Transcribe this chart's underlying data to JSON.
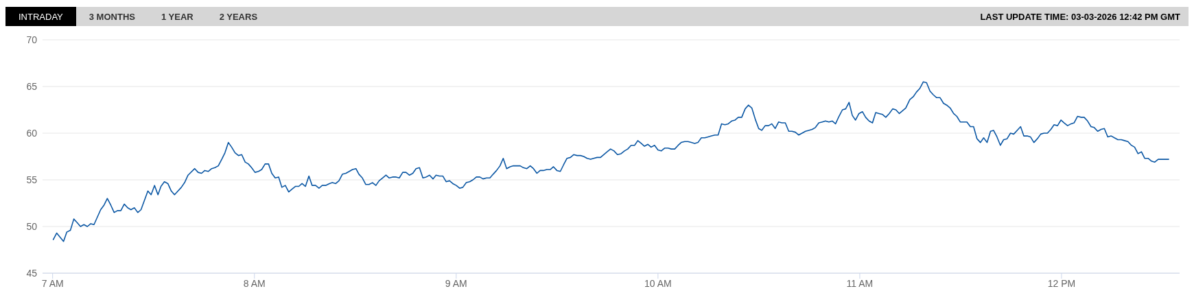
{
  "chart_data": {
    "type": "line",
    "annotations": [
      "INTRADAY",
      "3 MONTHS",
      "1 YEAR",
      "2 YEARS",
      "LAST UPDATE TIME: 03-03-2026 12:42 PM GMT"
    ],
    "x": [
      7.003,
      7.02,
      7.054,
      7.07,
      7.088,
      7.105,
      7.122,
      7.138,
      7.155,
      7.172,
      7.189,
      7.205,
      7.238,
      7.255,
      7.271,
      7.288,
      7.305,
      7.321,
      7.338,
      7.355,
      7.372,
      7.388,
      7.405,
      7.422,
      7.438,
      7.472,
      7.488,
      7.505,
      7.522,
      7.537,
      7.554,
      7.571,
      7.588,
      7.604,
      7.638,
      7.654,
      7.671,
      7.704,
      7.721,
      7.738,
      7.754,
      7.771,
      7.788,
      7.804,
      7.821,
      7.838,
      7.854,
      7.871,
      7.887,
      7.904,
      7.921,
      7.937,
      7.954,
      7.97,
      7.986,
      8.003,
      8.02,
      8.036,
      8.053,
      8.07,
      8.086,
      8.103,
      8.12,
      8.136,
      8.153,
      8.17,
      8.186,
      8.203,
      8.22,
      8.236,
      8.253,
      8.27,
      8.286,
      8.303,
      8.32,
      8.336,
      8.353,
      8.372,
      8.386,
      8.403,
      8.419,
      8.436,
      8.453,
      8.47,
      8.486,
      8.503,
      8.518,
      8.535,
      8.552,
      8.568,
      8.585,
      8.602,
      8.618,
      8.635,
      8.652,
      8.668,
      8.685,
      8.702,
      8.718,
      8.735,
      8.751,
      8.768,
      8.785,
      8.801,
      8.818,
      8.835,
      8.851,
      8.868,
      8.885,
      8.9,
      8.917,
      8.934,
      8.95,
      8.967,
      8.983,
      9.0,
      9.017,
      9.033,
      9.05,
      9.067,
      9.083,
      9.1,
      9.117,
      9.133,
      9.15,
      9.167,
      9.183,
      9.2,
      9.217,
      9.233,
      9.25,
      9.267,
      9.283,
      9.3,
      9.317,
      9.333,
      9.35,
      9.367,
      9.383,
      9.4,
      9.416,
      9.432,
      9.449,
      9.466,
      9.482,
      9.499,
      9.516,
      9.532,
      9.549,
      9.566,
      9.582,
      9.599,
      9.616,
      9.632,
      9.649,
      9.666,
      9.681,
      9.698,
      9.715,
      9.731,
      9.748,
      9.765,
      9.782,
      9.799,
      9.817,
      9.834,
      9.85,
      9.867,
      9.884,
      9.9,
      9.917,
      9.933,
      9.95,
      9.966,
      9.983,
      10.0,
      10.016,
      10.033,
      10.05,
      10.066,
      10.083,
      10.1,
      10.115,
      10.132,
      10.149,
      10.165,
      10.182,
      10.198,
      10.215,
      10.232,
      10.248,
      10.265,
      10.282,
      10.298,
      10.315,
      10.332,
      10.348,
      10.365,
      10.382,
      10.398,
      10.415,
      10.432,
      10.448,
      10.465,
      10.482,
      10.499,
      10.514,
      10.531,
      10.548,
      10.564,
      10.581,
      10.598,
      10.614,
      10.631,
      10.648,
      10.664,
      10.681,
      10.697,
      10.714,
      10.731,
      10.747,
      10.764,
      10.78,
      10.797,
      10.814,
      10.83,
      10.847,
      10.864,
      10.88,
      10.897,
      10.914,
      10.93,
      10.947,
      10.963,
      10.979,
      10.996,
      11.013,
      11.029,
      11.046,
      11.063,
      11.079,
      11.096,
      11.113,
      11.129,
      11.146,
      11.163,
      11.179,
      11.196,
      11.212,
      11.228,
      11.248,
      11.265,
      11.281,
      11.298,
      11.315,
      11.331,
      11.348,
      11.365,
      11.381,
      11.398,
      11.415,
      11.431,
      11.448,
      11.465,
      11.481,
      11.498,
      11.515,
      11.531,
      11.548,
      11.564,
      11.581,
      11.598,
      11.614,
      11.631,
      11.648,
      11.663,
      11.68,
      11.697,
      11.713,
      11.73,
      11.747,
      11.763,
      11.78,
      11.797,
      11.813,
      11.83,
      11.846,
      11.863,
      11.88,
      11.897,
      11.913,
      11.93,
      11.947,
      11.963,
      11.98,
      11.997,
      12.013,
      12.03,
      12.047,
      12.062,
      12.079,
      12.097,
      12.112,
      12.129,
      12.146,
      12.162,
      12.179,
      12.196,
      12.212,
      12.229,
      12.246,
      12.262,
      12.279,
      12.296,
      12.312,
      12.329,
      12.346,
      12.362,
      12.379,
      12.396,
      12.412,
      12.429,
      12.446,
      12.462,
      12.479,
      12.496,
      12.511,
      12.531
    ],
    "series": [
      {
        "color": "#0b57a4",
        "values": [
          48.6,
          49.3,
          48.4,
          49.4,
          49.6,
          50.8,
          50.4,
          50.0,
          50.2,
          50.0,
          50.3,
          50.2,
          51.8,
          52.3,
          53.0,
          52.3,
          51.5,
          51.7,
          51.7,
          52.4,
          52.0,
          51.8,
          52.0,
          51.5,
          51.8,
          53.8,
          53.4,
          54.4,
          53.4,
          54.3,
          54.8,
          54.6,
          53.8,
          53.4,
          54.2,
          54.7,
          55.5,
          56.2,
          55.8,
          55.7,
          56.0,
          55.9,
          56.2,
          56.3,
          56.5,
          57.2,
          57.9,
          59.0,
          58.5,
          57.9,
          57.6,
          57.7,
          56.9,
          56.7,
          56.3,
          55.8,
          55.9,
          56.1,
          56.7,
          56.7,
          55.7,
          55.2,
          55.3,
          54.2,
          54.4,
          53.7,
          54.0,
          54.3,
          54.3,
          54.6,
          54.3,
          55.4,
          54.4,
          54.4,
          54.1,
          54.4,
          54.4,
          54.6,
          54.7,
          54.6,
          54.9,
          55.6,
          55.7,
          55.9,
          56.1,
          56.2,
          55.6,
          55.2,
          54.5,
          54.5,
          54.7,
          54.4,
          54.9,
          55.2,
          55.5,
          55.2,
          55.3,
          55.3,
          55.2,
          55.8,
          55.8,
          55.5,
          55.7,
          56.2,
          56.3,
          55.2,
          55.3,
          55.5,
          55.1,
          55.5,
          55.4,
          55.4,
          54.8,
          54.9,
          54.6,
          54.4,
          54.1,
          54.2,
          54.7,
          54.8,
          55.0,
          55.3,
          55.3,
          55.1,
          55.2,
          55.2,
          55.6,
          56.0,
          56.5,
          57.3,
          56.2,
          56.4,
          56.5,
          56.5,
          56.5,
          56.3,
          56.2,
          56.5,
          56.2,
          55.7,
          56.0,
          56.0,
          56.1,
          56.1,
          56.4,
          56.0,
          55.9,
          56.6,
          57.3,
          57.4,
          57.7,
          57.6,
          57.6,
          57.5,
          57.3,
          57.2,
          57.3,
          57.4,
          57.4,
          57.7,
          58.0,
          58.3,
          58.1,
          57.7,
          57.8,
          58.1,
          58.3,
          58.7,
          58.7,
          59.2,
          58.9,
          58.6,
          58.8,
          58.5,
          58.7,
          58.2,
          58.1,
          58.4,
          58.4,
          58.3,
          58.3,
          58.7,
          59.0,
          59.1,
          59.1,
          59.0,
          58.9,
          59.0,
          59.5,
          59.5,
          59.6,
          59.7,
          59.8,
          59.8,
          61.0,
          60.9,
          61.0,
          61.3,
          61.4,
          61.7,
          61.7,
          62.6,
          63.0,
          62.7,
          61.5,
          60.5,
          60.3,
          60.8,
          60.8,
          61.0,
          60.5,
          61.2,
          61.1,
          61.1,
          60.2,
          60.2,
          60.1,
          59.8,
          60.0,
          60.2,
          60.3,
          60.4,
          60.6,
          61.1,
          61.2,
          61.3,
          61.2,
          61.3,
          61.0,
          61.8,
          62.5,
          62.6,
          63.3,
          61.9,
          61.4,
          62.1,
          62.3,
          61.7,
          61.3,
          61.1,
          62.2,
          62.1,
          62.0,
          61.7,
          62.1,
          62.6,
          62.5,
          62.1,
          62.4,
          62.7,
          63.6,
          63.9,
          64.4,
          64.8,
          65.5,
          65.4,
          64.5,
          64.1,
          63.8,
          63.8,
          63.2,
          63.0,
          62.7,
          62.1,
          61.8,
          61.2,
          61.2,
          61.2,
          60.7,
          60.7,
          59.4,
          59.0,
          59.5,
          59.0,
          60.2,
          60.3,
          59.6,
          58.7,
          59.3,
          59.4,
          60.0,
          59.9,
          60.3,
          60.7,
          59.7,
          59.7,
          59.6,
          59.0,
          59.4,
          59.9,
          60.0,
          60.0,
          60.4,
          60.9,
          60.8,
          61.4,
          61.1,
          60.8,
          61.0,
          61.1,
          61.8,
          61.7,
          61.7,
          61.3,
          60.7,
          60.6,
          60.2,
          60.4,
          60.5,
          59.6,
          59.7,
          59.5,
          59.3,
          59.3,
          59.2,
          59.1,
          58.7,
          58.5,
          57.8,
          58.0,
          57.3,
          57.3,
          57.0,
          56.9,
          57.2,
          57.2,
          57.2,
          57.2
        ]
      }
    ],
    "xlim": [
      6.95,
      12.585
    ],
    "xticks": [
      {
        "value": 7,
        "label": "7 AM"
      },
      {
        "value": 8,
        "label": "8 AM"
      },
      {
        "value": 9,
        "label": "9 AM"
      },
      {
        "value": 10,
        "label": "10 AM"
      },
      {
        "value": 11,
        "label": "11 AM"
      },
      {
        "value": 12,
        "label": "12 PM"
      }
    ],
    "ylim": [
      45,
      70
    ],
    "yticks": [
      45,
      50,
      55,
      60,
      65,
      70
    ],
    "grid": "y",
    "line_style": "solid"
  }
}
